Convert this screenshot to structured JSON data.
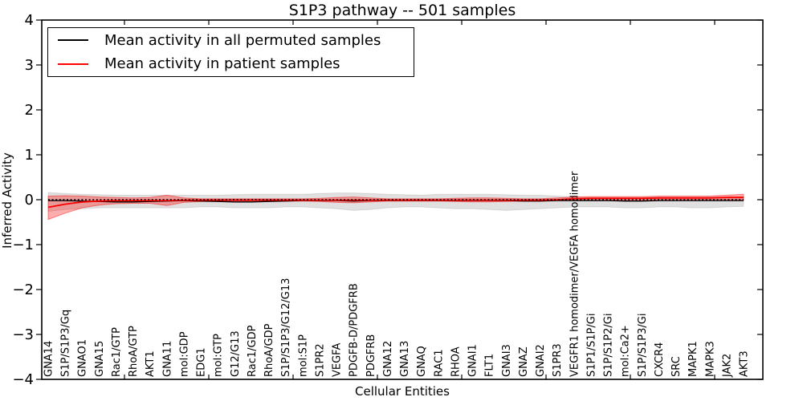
{
  "title": "S1P3 pathway -- 501 samples",
  "legend": {
    "items": [
      {
        "label": "Mean activity in all permuted samples",
        "color": "#000000"
      },
      {
        "label": "Mean activity in patient samples",
        "color": "#ff0000"
      }
    ]
  },
  "chart_data": {
    "type": "line",
    "title": "S1P3 pathway -- 501 samples",
    "xlabel": "Cellular Entities",
    "ylabel": "Inferred Activity",
    "ylim": [
      -4,
      4
    ],
    "yticks": [
      4,
      3,
      2,
      1,
      0,
      -1,
      -2,
      -3,
      -4
    ],
    "grid": false,
    "legend_position": "upper left",
    "zero_line": {
      "show": true,
      "style": "dotted",
      "color": "#000000",
      "value": 0
    },
    "categories": [
      "GNA14",
      "S1P/S1P3/Gq",
      "GNAO1",
      "GNA15",
      "Rac1/GTP",
      "RhoA/GTP",
      "AKT1",
      "GNA11",
      "mol:GDP",
      "EDG1",
      "mol:GTP",
      "G12/G13",
      "Rac1/GDP",
      "RhoA/GDP",
      "S1P/S1P3/G12/G13",
      "mol:S1P",
      "S1PR2",
      "VEGFA",
      "PDGFB-D/PDGFRB",
      "PDGFRB",
      "GNA12",
      "GNA13",
      "GNAQ",
      "RAC1",
      "RHOA",
      "GNAI1",
      "FLT1",
      "GNAI3",
      "GNAZ",
      "GNAI2",
      "S1PR3",
      "VEGFR1 homodimer/VEGFA homodimer",
      "S1P1/S1P/Gi",
      "S1P/S1P2/Gi",
      "mol:Ca2+",
      "S1P/S1P3/Gi",
      "CXCR4",
      "SRC",
      "MAPK1",
      "MAPK3",
      "JAK2",
      "AKT3"
    ],
    "series": [
      {
        "name": "Mean activity in all permuted samples",
        "color": "#000000",
        "band_color": "rgba(0,0,0,0.12)",
        "band_edge_color": "rgba(0,0,0,0.10)",
        "values": [
          -0.02,
          -0.02,
          -0.03,
          -0.04,
          -0.05,
          -0.05,
          -0.04,
          -0.03,
          -0.02,
          -0.03,
          -0.04,
          -0.05,
          -0.05,
          -0.04,
          -0.03,
          -0.02,
          -0.02,
          -0.02,
          -0.03,
          -0.02,
          -0.02,
          -0.02,
          -0.02,
          -0.02,
          -0.02,
          -0.02,
          -0.02,
          -0.02,
          -0.03,
          -0.03,
          -0.02,
          -0.02,
          -0.02,
          -0.02,
          -0.03,
          -0.03,
          -0.02,
          -0.02,
          -0.02,
          -0.02,
          -0.02,
          -0.02
        ],
        "band_upper": [
          0.16,
          0.14,
          0.12,
          0.11,
          0.1,
          0.1,
          0.1,
          0.1,
          0.1,
          0.1,
          0.1,
          0.11,
          0.12,
          0.12,
          0.12,
          0.12,
          0.14,
          0.15,
          0.15,
          0.14,
          0.12,
          0.11,
          0.1,
          0.12,
          0.12,
          0.12,
          0.12,
          0.11,
          0.1,
          0.1,
          0.08,
          0.06,
          0.05,
          0.05,
          0.05,
          0.05,
          0.06,
          0.06,
          0.06,
          0.06,
          0.06,
          0.07
        ],
        "band_lower": [
          -0.26,
          -0.22,
          -0.2,
          -0.18,
          -0.18,
          -0.18,
          -0.18,
          -0.18,
          -0.18,
          -0.16,
          -0.16,
          -0.18,
          -0.18,
          -0.18,
          -0.16,
          -0.16,
          -0.18,
          -0.2,
          -0.24,
          -0.22,
          -0.18,
          -0.16,
          -0.16,
          -0.18,
          -0.2,
          -0.2,
          -0.22,
          -0.24,
          -0.22,
          -0.2,
          -0.18,
          -0.16,
          -0.16,
          -0.16,
          -0.18,
          -0.18,
          -0.16,
          -0.16,
          -0.18,
          -0.18,
          -0.16,
          -0.15
        ]
      },
      {
        "name": "Mean activity in patient samples",
        "color": "#ff0000",
        "band_color": "rgba(255,0,0,0.32)",
        "band_edge_color": "rgba(255,0,0,0.45)",
        "values": [
          -0.17,
          -0.1,
          -0.05,
          -0.03,
          -0.02,
          -0.02,
          -0.02,
          -0.02,
          -0.01,
          -0.01,
          -0.01,
          -0.01,
          -0.01,
          -0.01,
          -0.01,
          -0.01,
          -0.01,
          -0.01,
          -0.01,
          -0.01,
          -0.01,
          -0.01,
          -0.01,
          -0.01,
          -0.01,
          -0.01,
          -0.01,
          -0.01,
          -0.01,
          -0.01,
          0.0,
          0.02,
          0.03,
          0.03,
          0.03,
          0.03,
          0.04,
          0.04,
          0.04,
          0.04,
          0.05,
          0.05
        ],
        "band_upper": [
          0.08,
          0.09,
          0.08,
          0.06,
          0.05,
          0.04,
          0.05,
          0.1,
          0.04,
          0.02,
          0.02,
          0.02,
          0.02,
          0.02,
          0.02,
          0.02,
          0.03,
          0.05,
          0.06,
          0.04,
          0.02,
          0.02,
          0.02,
          0.02,
          0.03,
          0.04,
          0.04,
          0.03,
          0.02,
          0.02,
          0.04,
          0.06,
          0.07,
          0.07,
          0.07,
          0.07,
          0.08,
          0.08,
          0.08,
          0.08,
          0.1,
          0.12
        ],
        "band_lower": [
          -0.44,
          -0.3,
          -0.18,
          -0.12,
          -0.09,
          -0.08,
          -0.08,
          -0.13,
          -0.06,
          -0.04,
          -0.03,
          -0.03,
          -0.03,
          -0.03,
          -0.03,
          -0.03,
          -0.04,
          -0.06,
          -0.07,
          -0.05,
          -0.03,
          -0.03,
          -0.03,
          -0.03,
          -0.04,
          -0.05,
          -0.05,
          -0.04,
          -0.03,
          -0.03,
          -0.02,
          -0.01,
          -0.01,
          -0.01,
          -0.01,
          -0.01,
          0.0,
          0.0,
          0.0,
          0.0,
          0.0,
          -0.01
        ]
      }
    ]
  }
}
